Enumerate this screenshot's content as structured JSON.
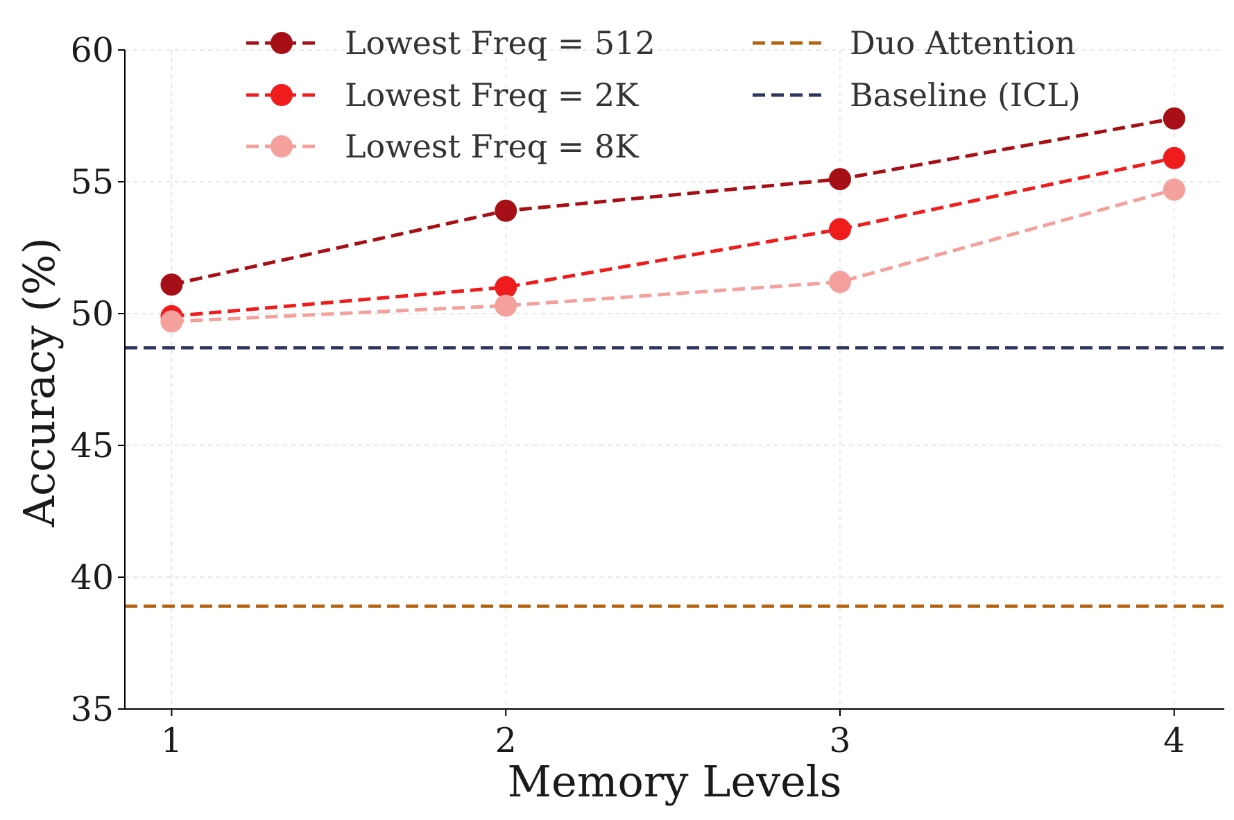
{
  "chart_data": {
    "type": "line",
    "xlabel": "Memory Levels",
    "ylabel": "Accuracy (%)",
    "x": [
      1,
      2,
      3,
      4
    ],
    "xticks": [
      "1",
      "2",
      "3",
      "4"
    ],
    "xlim": [
      0.86,
      4.15
    ],
    "ylim": [
      35,
      60
    ],
    "yticks": [
      "35",
      "40",
      "45",
      "50",
      "55",
      "60"
    ],
    "grid": true,
    "legend_placement": "top",
    "series": [
      {
        "name": "Lowest Freq = 512",
        "values": [
          51.1,
          53.9,
          55.1,
          57.4
        ],
        "color": "#a50f15",
        "marker": "circle",
        "linestyle": "dashed"
      },
      {
        "name": "Lowest Freq = 2K",
        "values": [
          49.9,
          51.0,
          53.2,
          55.9
        ],
        "color": "#ee1c1c",
        "marker": "circle",
        "linestyle": "dashed"
      },
      {
        "name": "Lowest Freq = 8K",
        "values": [
          49.7,
          50.3,
          51.2,
          54.7
        ],
        "color": "#f4a09c",
        "marker": "circle",
        "linestyle": "dashed"
      }
    ],
    "reference_lines": [
      {
        "name": "Duo Attention",
        "value": 38.9,
        "color": "#b5620f",
        "linestyle": "dashed"
      },
      {
        "name": "Baseline (ICL)",
        "value": 48.7,
        "color": "#2e3660",
        "linestyle": "dashed"
      }
    ]
  }
}
